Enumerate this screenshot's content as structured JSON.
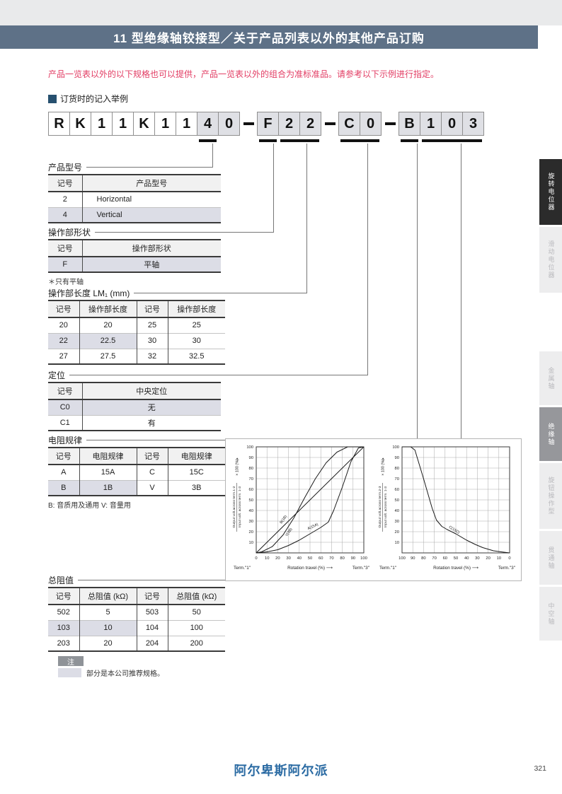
{
  "page": {
    "header_title": "11 型绝缘轴铰接型／关于产品列表以外的其他产品订购",
    "intro_text": "产品一览表以外的以下规格也可以提供，产品一览表以外的组合为准标准品。请参考以下示例进行指定。",
    "section_title": "订货时的记入举例",
    "footer_logo": "阿尔卑斯阿尔派",
    "page_number": "321"
  },
  "colors": {
    "header_bar": "#5e7187",
    "accent_red": "#e23c63",
    "recommended_shade": "#dcdde6",
    "footer_logo_blue": "#2b6ba3",
    "sidebar_active": "#96979b"
  },
  "part_number": {
    "segments": [
      {
        "chars": [
          "R",
          "K",
          "1",
          "1",
          "K",
          "1",
          "1",
          "4",
          "0"
        ],
        "shaded_from": 7
      },
      {
        "chars": [
          "F",
          "2",
          "2"
        ],
        "shaded_from": 0
      },
      {
        "chars": [
          "C",
          "0"
        ],
        "shaded_from": 0
      },
      {
        "chars": [
          "B",
          "1",
          "0",
          "3"
        ],
        "shaded_from": 0
      }
    ],
    "underline_groups": [
      {
        "seg": 0,
        "from": 7,
        "to": 7
      },
      {
        "seg": 1,
        "from": 0,
        "to": 0
      },
      {
        "seg": 1,
        "from": 1,
        "to": 2
      },
      {
        "seg": 2,
        "from": 0,
        "to": 1
      },
      {
        "seg": 3,
        "from": 0,
        "to": 0
      },
      {
        "seg": 3,
        "from": 1,
        "to": 3
      }
    ]
  },
  "sections": {
    "product_type": {
      "title": "产品型号",
      "headers": [
        "记号",
        "产品型号"
      ],
      "align": [
        "center",
        "left"
      ],
      "rows": [
        {
          "cells": [
            "2",
            "Horizontal"
          ],
          "shaded": []
        },
        {
          "cells": [
            "4",
            "Vertical"
          ],
          "shaded": [
            0,
            1
          ]
        }
      ]
    },
    "shaft_shape": {
      "title": "操作部形状",
      "headers": [
        "记号",
        "操作部形状"
      ],
      "align": [
        "center",
        "center"
      ],
      "rows": [
        {
          "cells": [
            "F",
            "平轴"
          ],
          "shaded": [
            0,
            1
          ]
        }
      ],
      "note": "＊只有平轴"
    },
    "shaft_length": {
      "title": "操作部长度 LM₁ (mm)",
      "headers": [
        "记号",
        "操作部长度",
        "记号",
        "操作部长度"
      ],
      "align": [
        "center",
        "center",
        "center",
        "center"
      ],
      "rows": [
        {
          "cells": [
            "20",
            "20",
            "25",
            "25"
          ],
          "shaded": []
        },
        {
          "cells": [
            "22",
            "22.5",
            "30",
            "30"
          ],
          "shaded": [
            0,
            1
          ]
        },
        {
          "cells": [
            "27",
            "27.5",
            "32",
            "32.5"
          ],
          "shaded": []
        }
      ]
    },
    "detent": {
      "title": "定位",
      "headers": [
        "记号",
        "中央定位"
      ],
      "align": [
        "center",
        "center"
      ],
      "rows": [
        {
          "cells": [
            "C0",
            "无"
          ],
          "shaded": [
            0,
            1
          ]
        },
        {
          "cells": [
            "C1",
            "有"
          ],
          "shaded": []
        }
      ]
    },
    "taper": {
      "title": "电阻规律",
      "headers": [
        "记号",
        "电阻规律",
        "记号",
        "电阻规律"
      ],
      "align": [
        "center",
        "center",
        "center",
        "center"
      ],
      "rows": [
        {
          "cells": [
            "A",
            "15A",
            "C",
            "15C"
          ],
          "shaded": []
        },
        {
          "cells": [
            "B",
            "1B",
            "V",
            "3B"
          ],
          "shaded": [
            0,
            1
          ]
        }
      ],
      "note": "B: 音质用及通用 V: 音量用"
    },
    "total_resistance": {
      "title": "总阻值",
      "headers": [
        "记号",
        "总阻值 (kΩ)",
        "记号",
        "总阻值 (kΩ)"
      ],
      "align": [
        "center",
        "center",
        "center",
        "center"
      ],
      "rows": [
        {
          "cells": [
            "502",
            "5",
            "503",
            "50"
          ],
          "shaded": []
        },
        {
          "cells": [
            "103",
            "10",
            "104",
            "100"
          ],
          "shaded": [
            0,
            1
          ]
        },
        {
          "cells": [
            "203",
            "20",
            "204",
            "200"
          ],
          "shaded": []
        }
      ]
    }
  },
  "chart_data": [
    {
      "name": "taper-curve-term1-2",
      "type": "line",
      "ylabel_num": "Output volt.across term.1-2",
      "ylabel_den": "Input volt. across term. 1-3",
      "ylabel_suffix": "× 100 (%)",
      "xlabel": "Rotation travel (%)",
      "x_left_label": "Term.\"1\"",
      "x_right_label": "Term.\"3\"",
      "x_reversed": false,
      "xlim": [
        0,
        100
      ],
      "ylim": [
        0,
        100
      ],
      "grid": true,
      "xticks": [
        0,
        10,
        20,
        30,
        40,
        50,
        60,
        70,
        80,
        90,
        100
      ],
      "yticks": [
        10,
        20,
        30,
        40,
        50,
        60,
        70,
        80,
        90,
        100
      ],
      "series": [
        {
          "name": "V(3B)",
          "points": [
            [
              0,
              0
            ],
            [
              5,
              1
            ],
            [
              15,
              6
            ],
            [
              25,
              17
            ],
            [
              35,
              33
            ],
            [
              45,
              52
            ],
            [
              55,
              70
            ],
            [
              65,
              85
            ],
            [
              75,
              95
            ],
            [
              85,
              100
            ],
            [
              100,
              100
            ]
          ],
          "label_at": [
            31,
            19
          ],
          "label_rotate": -55
        },
        {
          "name": "B(1B)",
          "points": [
            [
              0,
              0
            ],
            [
              100,
              100
            ]
          ],
          "label_at": [
            26,
            31
          ],
          "label_rotate": -55
        },
        {
          "name": "A(15A)",
          "points": [
            [
              0,
              0
            ],
            [
              10,
              1
            ],
            [
              20,
              3
            ],
            [
              30,
              7
            ],
            [
              40,
              12
            ],
            [
              50,
              18
            ],
            [
              60,
              24
            ],
            [
              67,
              29
            ],
            [
              72,
              40
            ],
            [
              80,
              62
            ],
            [
              88,
              86
            ],
            [
              95,
              99
            ],
            [
              100,
              100
            ]
          ],
          "label_at": [
            53,
            24
          ],
          "label_rotate": -25
        }
      ]
    },
    {
      "name": "taper-curve-term2-3",
      "type": "line",
      "ylabel_num": "Output volt.across term.2-3",
      "ylabel_den": "Input volt. across term. 1-3",
      "ylabel_suffix": "× 100 (%)",
      "xlabel": "Rotation travel (%)",
      "x_left_label": "Term.\"1\"",
      "x_right_label": "Term.\"3\"",
      "x_reversed": true,
      "xlim": [
        0,
        100
      ],
      "ylim": [
        0,
        100
      ],
      "grid": true,
      "xticks": [
        100,
        90,
        80,
        70,
        60,
        50,
        40,
        30,
        20,
        10,
        0
      ],
      "yticks": [
        10,
        20,
        30,
        40,
        50,
        60,
        70,
        80,
        90,
        100
      ],
      "series": [
        {
          "name": "C(15C)",
          "points": [
            [
              0,
              0
            ],
            [
              8,
              1
            ],
            [
              15,
              2
            ],
            [
              25,
              5
            ],
            [
              32,
              8
            ],
            [
              40,
              12
            ],
            [
              50,
              18
            ],
            [
              58,
              22
            ],
            [
              63,
              25
            ],
            [
              68,
              31
            ],
            [
              72,
              42
            ],
            [
              80,
              70
            ],
            [
              88,
              97
            ],
            [
              92,
              100
            ],
            [
              100,
              100
            ]
          ],
          "label_at": [
            52,
            21
          ],
          "label_rotate": 32
        }
      ]
    }
  ],
  "sidebar": {
    "tabs": [
      {
        "label": "旋转电位器",
        "style": "black"
      },
      {
        "label": "滑动电位器",
        "style": "light"
      },
      {
        "label": "金属轴",
        "style": "light"
      },
      {
        "label": "绝缘轴",
        "style": "active"
      },
      {
        "label": "旋钮操作型",
        "style": "light"
      },
      {
        "label": "贯通轴",
        "style": "light"
      },
      {
        "label": "中空轴",
        "style": "light"
      }
    ]
  },
  "notes": {
    "badge": "注",
    "legend_text": "部分是本公司推荐规格。"
  }
}
